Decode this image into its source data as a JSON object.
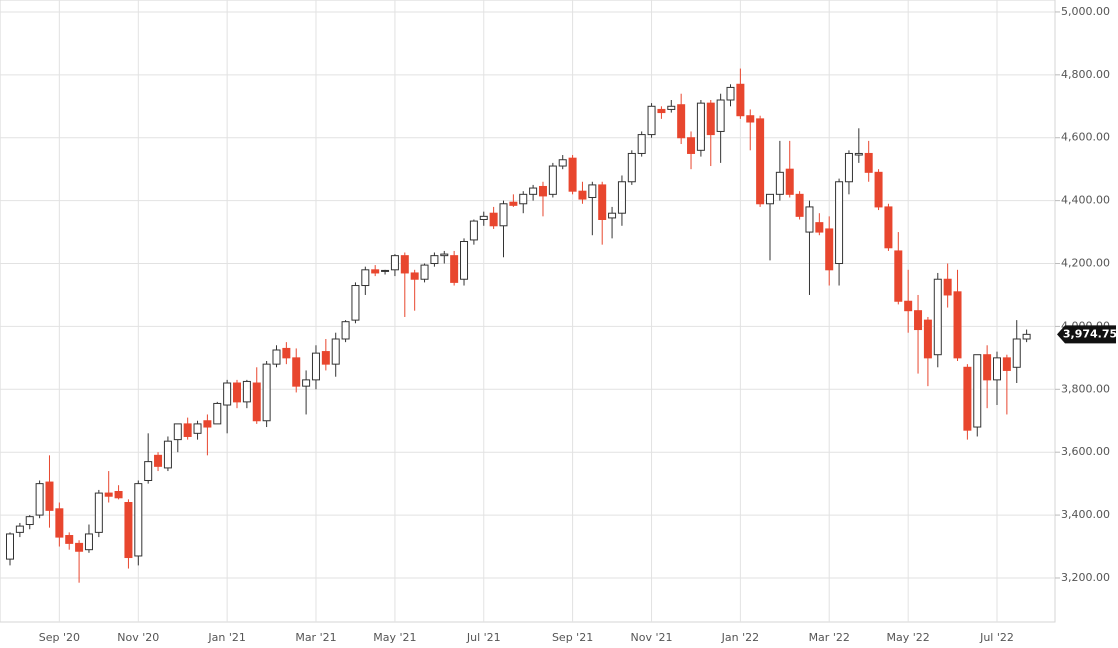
{
  "chart_data": {
    "type": "candlestick",
    "categories": [
      null,
      null,
      null,
      null,
      null,
      "Sep '20",
      null,
      null,
      null,
      null,
      null,
      null,
      null,
      "Nov '20",
      null,
      null,
      null,
      null,
      null,
      null,
      null,
      null,
      "Jan '21",
      null,
      null,
      null,
      null,
      null,
      null,
      null,
      null,
      "Mar '21",
      null,
      null,
      null,
      null,
      null,
      null,
      null,
      "May '21",
      null,
      null,
      null,
      null,
      null,
      null,
      null,
      null,
      "Jul '21",
      null,
      null,
      null,
      null,
      null,
      null,
      null,
      null,
      "Sep '21",
      null,
      null,
      null,
      null,
      null,
      null,
      null,
      "Nov '21",
      null,
      null,
      null,
      null,
      null,
      null,
      null,
      null,
      "Jan '22",
      null,
      null,
      null,
      null,
      null,
      null,
      null,
      null,
      "Mar '22",
      null,
      null,
      null,
      null,
      null,
      null,
      null,
      "May '22",
      null,
      null,
      null,
      null,
      null,
      null,
      null,
      null,
      "Jul '22",
      null,
      null,
      null
    ],
    "open": [
      3260,
      3345,
      3370,
      3400,
      3505,
      3420,
      3335,
      3310,
      3290,
      3345,
      3470,
      3475,
      3440,
      3270,
      3510,
      3590,
      3550,
      3640,
      3690,
      3660,
      3700,
      3690,
      3750,
      3820,
      3760,
      3820,
      3700,
      3880,
      3930,
      3900,
      3810,
      3830,
      3920,
      3880,
      3960,
      4020,
      4130,
      4180,
      4175,
      4180,
      4225,
      4170,
      4150,
      4200,
      4225,
      4225,
      4150,
      4275,
      4340,
      4360,
      4320,
      4395,
      4390,
      4420,
      4445,
      4420,
      4510,
      4535,
      4430,
      4410,
      4450,
      4345,
      4360,
      4460,
      4550,
      4610,
      4690,
      4690,
      4705,
      4600,
      4560,
      4710,
      4620,
      4720,
      4770,
      4670,
      4660,
      4390,
      4420,
      4500,
      4420,
      4300,
      4330,
      4310,
      4200,
      4460,
      4545,
      4550,
      4490,
      4380,
      4240,
      4080,
      4050,
      4020,
      3910,
      4150,
      4110,
      3870,
      3680,
      3910,
      3830,
      3900,
      3870,
      3960
    ],
    "high": [
      3345,
      3375,
      3400,
      3510,
      3590,
      3440,
      3345,
      3320,
      3370,
      3480,
      3540,
      3495,
      3450,
      3510,
      3660,
      3600,
      3650,
      3690,
      3710,
      3700,
      3720,
      3760,
      3830,
      3830,
      3830,
      3870,
      3890,
      3940,
      3950,
      3930,
      3860,
      3940,
      3960,
      3980,
      4020,
      4140,
      4190,
      4195,
      4180,
      4230,
      4235,
      4180,
      4200,
      4235,
      4240,
      4240,
      4280,
      4340,
      4365,
      4380,
      4400,
      4420,
      4430,
      4450,
      4460,
      4520,
      4545,
      4545,
      4460,
      4460,
      4460,
      4380,
      4480,
      4560,
      4620,
      4710,
      4700,
      4720,
      4740,
      4620,
      4720,
      4720,
      4740,
      4770,
      4820,
      4690,
      4670,
      4420,
      4590,
      4590,
      4430,
      4400,
      4360,
      4350,
      4470,
      4560,
      4630,
      4590,
      4500,
      4390,
      4300,
      4180,
      4100,
      4030,
      4170,
      4200,
      4180,
      3880,
      3910,
      3940,
      3920,
      3910,
      4020,
      3990
    ],
    "low": [
      3240,
      3330,
      3355,
      3390,
      3360,
      3300,
      3290,
      3185,
      3280,
      3330,
      3440,
      3450,
      3230,
      3240,
      3500,
      3540,
      3540,
      3600,
      3640,
      3640,
      3590,
      3690,
      3660,
      3740,
      3740,
      3690,
      3680,
      3870,
      3880,
      3790,
      3720,
      3800,
      3860,
      3840,
      3950,
      4010,
      4100,
      4160,
      4165,
      4160,
      4030,
      4050,
      4140,
      4190,
      4200,
      4130,
      4130,
      4260,
      4320,
      4310,
      4220,
      4380,
      4360,
      4400,
      4350,
      4410,
      4500,
      4420,
      4390,
      4290,
      4260,
      4280,
      4320,
      4450,
      4540,
      4600,
      4660,
      4680,
      4580,
      4500,
      4540,
      4510,
      4520,
      4700,
      4660,
      4560,
      4380,
      4210,
      4400,
      4410,
      4340,
      4100,
      4290,
      4130,
      4130,
      4420,
      4520,
      4460,
      4370,
      4240,
      4070,
      3980,
      3850,
      3810,
      3870,
      4060,
      3890,
      3640,
      3650,
      3740,
      3750,
      3720,
      3820,
      3950
    ],
    "close": [
      3340,
      3365,
      3395,
      3500,
      3415,
      3330,
      3310,
      3285,
      3340,
      3470,
      3460,
      3455,
      3265,
      3500,
      3570,
      3555,
      3635,
      3690,
      3650,
      3690,
      3680,
      3755,
      3820,
      3760,
      3825,
      3700,
      3880,
      3925,
      3900,
      3810,
      3830,
      3915,
      3880,
      3960,
      4015,
      4130,
      4180,
      4170,
      4178,
      4225,
      4170,
      4150,
      4195,
      4225,
      4230,
      4140,
      4270,
      4335,
      4350,
      4320,
      4390,
      4385,
      4420,
      4440,
      4415,
      4510,
      4530,
      4430,
      4405,
      4450,
      4340,
      4360,
      4460,
      4550,
      4610,
      4700,
      4680,
      4700,
      4600,
      4550,
      4710,
      4610,
      4720,
      4760,
      4670,
      4650,
      4390,
      4420,
      4490,
      4420,
      4350,
      4380,
      4300,
      4180,
      4460,
      4550,
      4550,
      4490,
      4380,
      4250,
      4080,
      4050,
      3990,
      3900,
      4150,
      4100,
      3900,
      3670,
      3910,
      3830,
      3900,
      3860,
      3960,
      3974.75
    ],
    "up_color": "#ffffff",
    "down_color": "#e8462e",
    "outline_color": "#333333",
    "last_price": {
      "value": 3974.75,
      "label": "3,974.75"
    },
    "ylim": [
      3060,
      5038
    ],
    "yticks": [
      {
        "value": 3200,
        "label": "3,200.00"
      },
      {
        "value": 3400,
        "label": "3,400.00"
      },
      {
        "value": 3600,
        "label": "3,600.00"
      },
      {
        "value": 3800,
        "label": "3,800.00"
      },
      {
        "value": 4000,
        "label": "4,000.00"
      },
      {
        "value": 4200,
        "label": "4,200.00"
      },
      {
        "value": 4400,
        "label": "4,400.00"
      },
      {
        "value": 4600,
        "label": "4,600.00"
      },
      {
        "value": 4800,
        "label": "4,800.00"
      },
      {
        "value": 5000,
        "label": "5,000.00"
      }
    ],
    "grid": true
  }
}
